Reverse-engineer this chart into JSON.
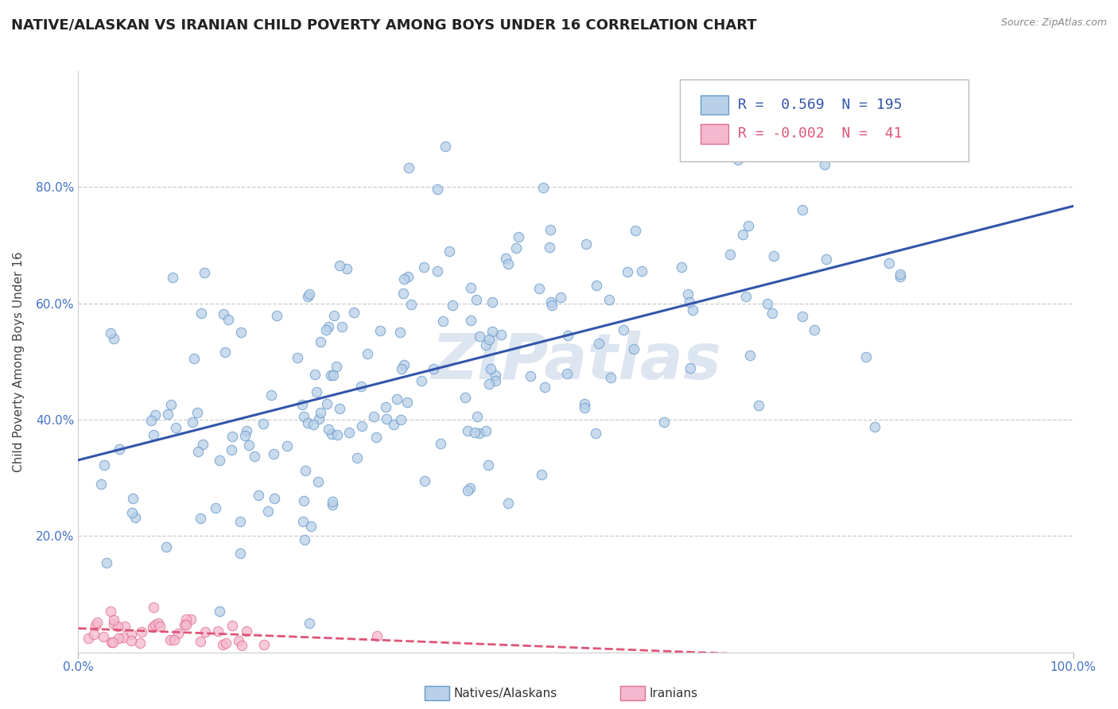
{
  "title": "NATIVE/ALASKAN VS IRANIAN CHILD POVERTY AMONG BOYS UNDER 16 CORRELATION CHART",
  "source": "Source: ZipAtlas.com",
  "ylabel": "Child Poverty Among Boys Under 16",
  "xlim": [
    0,
    1
  ],
  "ylim": [
    0,
    1
  ],
  "x_tick_labels": [
    "0.0%",
    "100.0%"
  ],
  "y_tick_labels": [
    "20.0%",
    "40.0%",
    "60.0%",
    "80.0%"
  ],
  "y_tick_positions": [
    0.2,
    0.4,
    0.6,
    0.8
  ],
  "native_color": "#b8d0e8",
  "native_edge_color": "#6699cc",
  "iranian_color": "#f5b8ce",
  "iranian_edge_color": "#e07090",
  "native_line_color": "#3355aa",
  "iranian_line_color": "#dd5577",
  "native_R": 0.569,
  "native_N": 195,
  "iranian_R": -0.002,
  "iranian_N": 41,
  "background_color": "#ffffff",
  "grid_color": "#cccccc",
  "watermark_color": "#dde5f0",
  "title_fontsize": 13,
  "axis_label_fontsize": 11,
  "tick_fontsize": 11,
  "tick_color": "#4472c4",
  "legend_fontsize": 13
}
